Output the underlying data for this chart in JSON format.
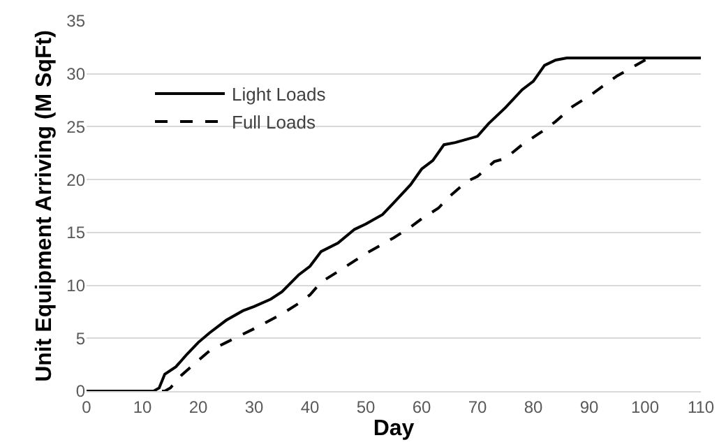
{
  "chart_data": {
    "type": "line",
    "xlabel": "Day",
    "ylabel": "Unit Equipment Arriving (M SqFt)",
    "xlim": [
      0,
      110
    ],
    "xticks": [
      0,
      10,
      20,
      30,
      40,
      50,
      60,
      70,
      80,
      90,
      100,
      110
    ],
    "ylim": [
      0,
      35
    ],
    "yticks": [
      0,
      5,
      10,
      15,
      20,
      25,
      30,
      35
    ],
    "grid": "y",
    "legend": "top left",
    "series": [
      {
        "name": "Light Loads",
        "color": "#000000",
        "line_style": "solid",
        "x": [
          0,
          12,
          13,
          14,
          16,
          18,
          20,
          22,
          25,
          28,
          30,
          33,
          35,
          38,
          40,
          42,
          45,
          48,
          50,
          53,
          55,
          58,
          60,
          62,
          64,
          66,
          68,
          70,
          72,
          75,
          78,
          80,
          82,
          84,
          86,
          110
        ],
        "values": [
          0,
          0,
          0.3,
          1.6,
          2.3,
          3.5,
          4.6,
          5.5,
          6.7,
          7.6,
          8.0,
          8.7,
          9.4,
          11.0,
          11.8,
          13.2,
          14.0,
          15.3,
          15.8,
          16.7,
          17.8,
          19.5,
          21.0,
          21.8,
          23.3,
          23.5,
          23.8,
          24.1,
          25.3,
          26.8,
          28.5,
          29.3,
          30.8,
          31.3,
          31.5,
          31.5
        ]
      },
      {
        "name": "Full Loads",
        "color": "#000000",
        "line_style": "dashed",
        "x": [
          0,
          14,
          15,
          17,
          20,
          22,
          25,
          30,
          35,
          38,
          40,
          42,
          45,
          50,
          55,
          58,
          60,
          63,
          65,
          68,
          70,
          73,
          75,
          78,
          82,
          84,
          87,
          90,
          95,
          100,
          101,
          110
        ],
        "values": [
          0,
          0,
          0.3,
          1.5,
          2.9,
          3.8,
          4.6,
          5.9,
          7.3,
          8.3,
          9.1,
          10.3,
          11.3,
          13.0,
          14.5,
          15.5,
          16.3,
          17.3,
          18.4,
          19.8,
          20.3,
          21.7,
          22.0,
          23.3,
          24.7,
          25.5,
          26.9,
          27.9,
          29.8,
          31.3,
          31.5,
          31.5
        ]
      }
    ]
  }
}
